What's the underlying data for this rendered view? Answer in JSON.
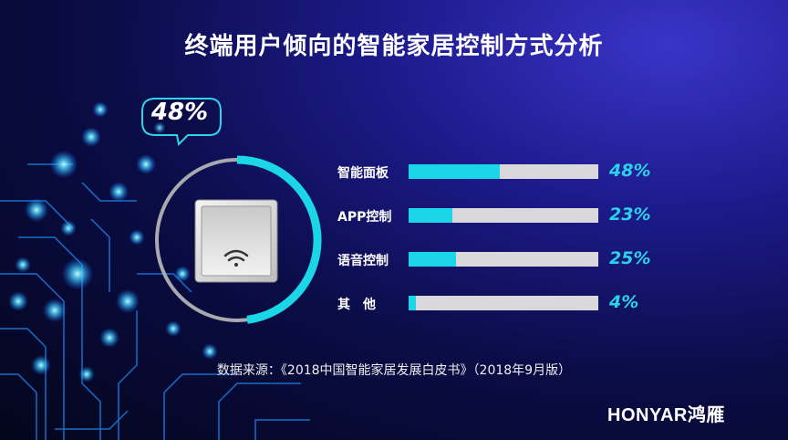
{
  "title": "终端用户倾向的智能家居控制方式分析",
  "highlight": {
    "value": "48%",
    "fraction": 0.48
  },
  "source": "数据来源：《2018中国智能家居发展白皮书》（2018年9月版）",
  "brand": {
    "name_en": "HONYAR",
    "name_cn": "鸿雁"
  },
  "colors": {
    "accent": "#1bd6e6",
    "track": "#d9d9dc",
    "pct_text": "#29d4ea"
  },
  "chart_data": {
    "type": "bar",
    "orientation": "horizontal",
    "categories": [
      "智能面板",
      "APP控制",
      "语音控制",
      "其　他"
    ],
    "values": [
      48,
      23,
      25,
      4
    ],
    "value_labels": [
      "48%",
      "23%",
      "25%",
      "4%"
    ],
    "xlim": [
      0,
      100
    ],
    "title": "终端用户倾向的智能家居控制方式分析"
  }
}
